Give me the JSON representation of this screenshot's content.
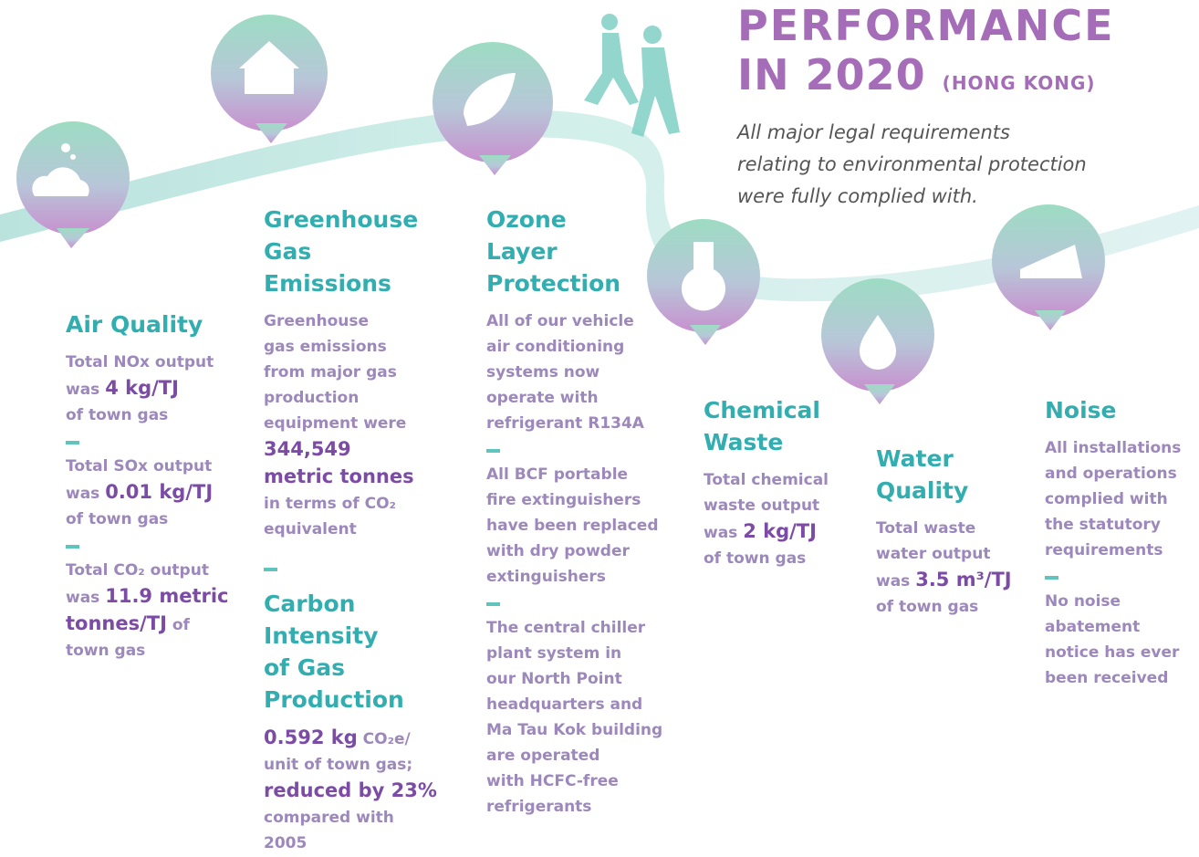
{
  "title": {
    "line1": "PERFORMANCE",
    "line2": "IN 2020",
    "suffix": "(HONG KONG)"
  },
  "intro": [
    "All major legal requirements",
    "relating to environmental protection",
    "were fully complied with."
  ],
  "sections": [
    {
      "heading": [
        "Air Quality"
      ],
      "blocks": [
        [
          [
            "Total NOx output"
          ],
          [
            "was ",
            {
              "strong": "4 kg/TJ"
            }
          ],
          [
            "of town gas"
          ]
        ],
        [
          [
            "Total SOx output"
          ],
          [
            "was ",
            {
              "strong": "0.01 kg/TJ"
            }
          ],
          [
            "of town gas"
          ]
        ],
        [
          [
            "Total CO₂ output"
          ],
          [
            "was ",
            {
              "strong": "11.9 metric"
            }
          ],
          [
            {
              "strong": "tonnes/TJ"
            },
            " of"
          ],
          [
            "town gas"
          ]
        ]
      ]
    },
    {
      "heading": [
        "Greenhouse",
        "Gas",
        "Emissions"
      ],
      "blocks": [
        [
          [
            "Greenhouse"
          ],
          [
            "gas emissions"
          ],
          [
            "from major gas"
          ],
          [
            "production"
          ],
          [
            "equipment were"
          ],
          [
            {
              "strong": "344,549"
            }
          ],
          [
            {
              "strong": "metric tonnes"
            }
          ],
          [
            "in terms of CO₂"
          ],
          [
            "equivalent"
          ]
        ]
      ]
    },
    {
      "heading": [
        "Carbon",
        "Intensity",
        "of Gas",
        "Production"
      ],
      "blocks": [
        [
          [
            {
              "strong": "0.592 kg"
            },
            " CO₂e/"
          ],
          [
            "unit of town gas;"
          ],
          [
            {
              "strong": "reduced by 23%"
            }
          ],
          [
            "compared with"
          ],
          [
            "2005"
          ]
        ]
      ]
    },
    {
      "heading": [
        "Ozone",
        "Layer",
        "Protection"
      ],
      "blocks": [
        [
          [
            "All of our vehicle"
          ],
          [
            "air conditioning"
          ],
          [
            "systems now"
          ],
          [
            "operate with"
          ],
          [
            "refrigerant R134A"
          ]
        ],
        [
          [
            "All BCF portable"
          ],
          [
            "fire extinguishers"
          ],
          [
            "have been replaced"
          ],
          [
            "with dry powder"
          ],
          [
            "extinguishers"
          ]
        ],
        [
          [
            "The central chiller"
          ],
          [
            "plant system in"
          ],
          [
            "our North Point"
          ],
          [
            "headquarters and"
          ],
          [
            "Ma Tau Kok building"
          ],
          [
            "are operated"
          ],
          [
            "with HCFC-free"
          ],
          [
            "refrigerants"
          ]
        ]
      ]
    },
    {
      "heading": [
        "Chemical",
        "Waste"
      ],
      "blocks": [
        [
          [
            "Total chemical"
          ],
          [
            "waste output"
          ],
          [
            "was ",
            {
              "strong": "2 kg/TJ"
            }
          ],
          [
            "of town gas"
          ]
        ]
      ]
    },
    {
      "heading": [
        "Water",
        "Quality"
      ],
      "blocks": [
        [
          [
            "Total waste"
          ],
          [
            "water output"
          ],
          [
            "was ",
            {
              "strong": "3.5 m³/TJ"
            }
          ],
          [
            "of town gas"
          ]
        ]
      ]
    },
    {
      "heading": [
        "Noise"
      ],
      "blocks": [
        [
          [
            "All installations"
          ],
          [
            "and operations"
          ],
          [
            "complied with"
          ],
          [
            "the statutory"
          ],
          [
            "requirements"
          ]
        ],
        [
          [
            "No noise"
          ],
          [
            "abatement"
          ],
          [
            "notice has ever"
          ],
          [
            "been received"
          ]
        ]
      ]
    }
  ]
}
